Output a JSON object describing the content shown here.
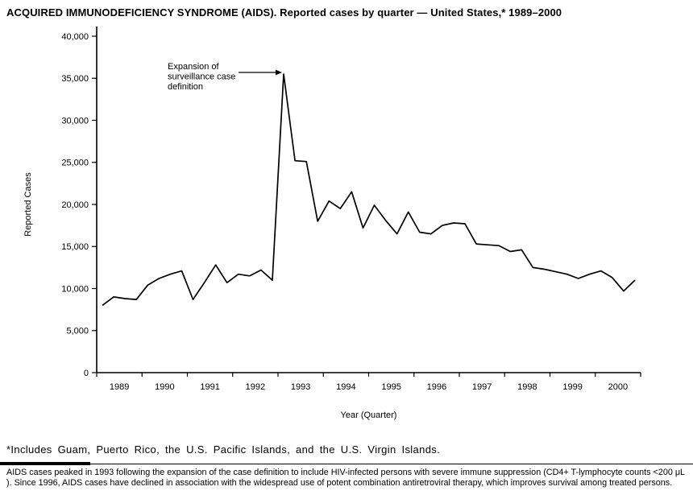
{
  "page": {
    "title": "ACQUIRED IMMUNODEFICIENCY SYNDROME (AIDS). Reported cases by quarter — United States,* 1989–2000",
    "footnote": "*Includes Guam, Puerto Rico, the U.S. Pacific Islands, and the U.S. Virgin Islands.",
    "caption": "AIDS cases peaked in 1993 following the expansion of the case definition to include HIV-infected persons with severe immune suppression (CD4+ T-lymphocyte counts <200 μL ). Since 1996, AIDS cases have declined in association with the widespread use of potent combination antiretroviral therapy, which improves survival among treated persons."
  },
  "chart_data": {
    "type": "line",
    "title": "ACQUIRED IMMUNODEFICIENCY SYNDROME (AIDS). Reported cases by quarter — United States,* 1989–2000",
    "xlabel": "Year (Quarter)",
    "ylabel": "Reported Cases",
    "ylim": [
      0,
      40000
    ],
    "ytick_step": 5000,
    "ytick_labels": [
      "0",
      "5,000",
      "10,000",
      "15,000",
      "20,000",
      "25,000",
      "30,000",
      "35,000",
      "40,000"
    ],
    "years": [
      "1989",
      "1990",
      "1991",
      "1992",
      "1993",
      "1994",
      "1995",
      "1996",
      "1997",
      "1998",
      "1999",
      "2000"
    ],
    "quarters_per_year": 4,
    "x_unit": "quarter",
    "grid": false,
    "legend": "none",
    "line_color": "#000000",
    "axis_color": "#000000",
    "values": [
      8000,
      9000,
      8800,
      8700,
      10400,
      11200,
      11700,
      12100,
      8700,
      10700,
      12800,
      10700,
      11700,
      11500,
      12200,
      11000,
      35500,
      25200,
      25100,
      18000,
      20400,
      19500,
      21500,
      17200,
      19900,
      18100,
      16500,
      19100,
      16700,
      16500,
      17500,
      17800,
      17700,
      15300,
      15200,
      15100,
      14400,
      14600,
      12500,
      12300,
      12000,
      11700,
      11200,
      11700,
      12100,
      11300,
      9700,
      11000
    ],
    "annotation": {
      "text_lines": [
        "Expansion of",
        "surveillance case",
        "definition"
      ],
      "points_to": {
        "year": "1993",
        "quarter": 1,
        "value": 35500
      }
    }
  }
}
